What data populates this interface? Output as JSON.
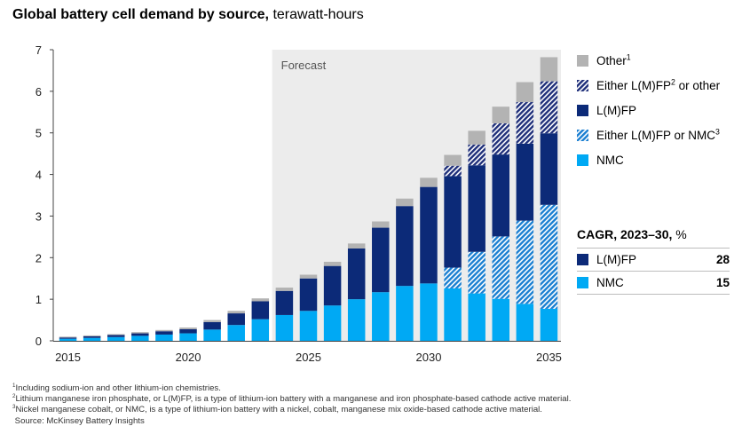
{
  "header": {
    "title_bold": "Global battery cell demand by source,",
    "title_unit": "terawatt-hours"
  },
  "colors": {
    "other": "#b3b3b3",
    "lmfp": "#0c2a78",
    "nmc": "#00a9f4",
    "either_lmfp_other": "#1f2f7a",
    "either_lmfp_nmc": "#1a7fd1",
    "forecast_bg": "#ececec"
  },
  "legend": [
    {
      "key": "other",
      "label": "Other",
      "sup": "1"
    },
    {
      "key": "either_lmfp_other",
      "label": "Either L(M)FP",
      "sup": "2",
      "label_after": " or other"
    },
    {
      "key": "lmfp",
      "label": "L(M)FP",
      "sup": "",
      "label_after": ""
    },
    {
      "key": "either_lmfp_nmc",
      "label": "Either L(M)FP or NMC",
      "sup": "3",
      "label_after": ""
    },
    {
      "key": "nmc",
      "label": "NMC",
      "sup": "",
      "label_after": ""
    }
  ],
  "cagr": {
    "title_bold": "CAGR, 2023–30,",
    "title_unit": "%",
    "rows": [
      {
        "key": "lmfp",
        "label": "L(M)FP",
        "value": "28"
      },
      {
        "key": "nmc",
        "label": "NMC",
        "value": "15"
      }
    ]
  },
  "footnotes": {
    "n1": "Including sodium-ion and other lithium-ion chemistries.",
    "n2": "Lithium manganese iron phosphate, or L(M)FP, is a type of lithium-ion battery with a manganese and iron phosphate-based cathode active material.",
    "n3": "Nickel manganese cobalt, or NMC, is a type of lithium-ion battery with a nickel, cobalt, manganese mix oxide-based cathode active material.",
    "source": "Source: McKinsey Battery Insights"
  },
  "chart_data": {
    "type": "bar",
    "stacked": true,
    "title": "Global battery cell demand by source, terawatt-hours",
    "x": [
      2015,
      2016,
      2017,
      2018,
      2019,
      2020,
      2021,
      2022,
      2023,
      2024,
      2025,
      2026,
      2027,
      2028,
      2029,
      2030,
      2031,
      2032,
      2033,
      2034,
      2035
    ],
    "x_tick_labels": [
      "2015",
      "2020",
      "2025",
      "2030",
      "2035"
    ],
    "ylim": [
      0,
      7
    ],
    "y_ticks": [
      0,
      1,
      2,
      3,
      4,
      5,
      6,
      7
    ],
    "forecast_label": "Forecast",
    "forecast_start": 2024,
    "series": [
      {
        "key": "nmc",
        "name": "NMC",
        "values": [
          0.05,
          0.07,
          0.09,
          0.12,
          0.15,
          0.18,
          0.27,
          0.38,
          0.52,
          0.62,
          0.72,
          0.85,
          1.0,
          1.17,
          1.32,
          1.38,
          1.26,
          1.14,
          1.01,
          0.89,
          0.77
        ]
      },
      {
        "key": "either_lmfp_nmc",
        "name": "Either L(M)FP or NMC",
        "values": [
          0,
          0,
          0,
          0,
          0,
          0,
          0,
          0,
          0,
          0,
          0,
          0,
          0,
          0,
          0,
          0,
          0.5,
          1.0,
          1.5,
          2.0,
          2.5
        ]
      },
      {
        "key": "lmfp",
        "name": "L(M)FP",
        "values": [
          0.03,
          0.04,
          0.05,
          0.06,
          0.08,
          0.1,
          0.18,
          0.28,
          0.43,
          0.58,
          0.78,
          0.95,
          1.22,
          1.55,
          1.92,
          2.32,
          2.2,
          2.08,
          1.97,
          1.85,
          1.72
        ]
      },
      {
        "key": "either_lmfp_other",
        "name": "Either L(M)FP or other",
        "values": [
          0,
          0,
          0,
          0,
          0,
          0,
          0,
          0,
          0,
          0,
          0,
          0,
          0,
          0,
          0,
          0,
          0.25,
          0.5,
          0.75,
          1.0,
          1.25
        ]
      },
      {
        "key": "other",
        "name": "Other",
        "values": [
          0.02,
          0.02,
          0.02,
          0.03,
          0.03,
          0.04,
          0.05,
          0.06,
          0.07,
          0.08,
          0.09,
          0.1,
          0.12,
          0.15,
          0.18,
          0.22,
          0.26,
          0.33,
          0.4,
          0.48,
          0.58
        ]
      }
    ]
  }
}
